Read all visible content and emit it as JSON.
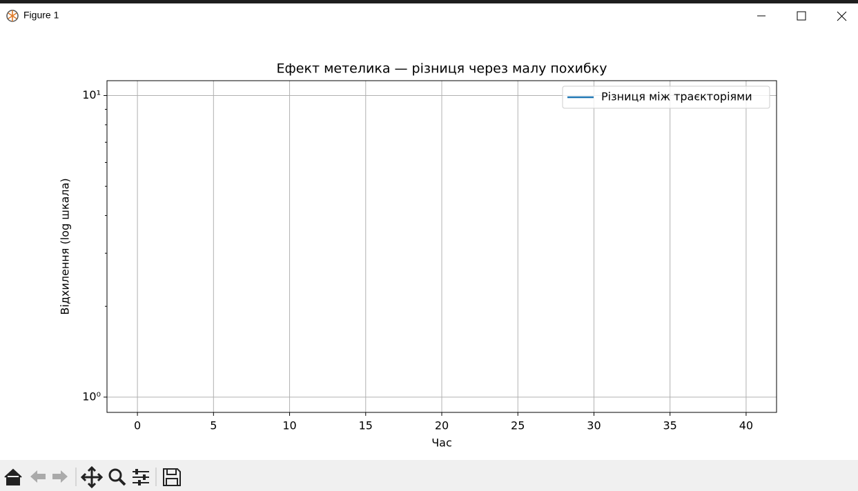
{
  "window": {
    "title": "Figure 1"
  },
  "chart_data": {
    "type": "line",
    "title": "Ефект метелика — різниця через малу похибку",
    "xlabel": "Час",
    "ylabel": "Відхилення (log шкала)",
    "x": [],
    "series": [
      {
        "name": "Різниця між траєкторіями",
        "color": "#1f77b4",
        "values": []
      }
    ],
    "xlim": [
      -2,
      42
    ],
    "xticks": [
      0,
      5,
      10,
      15,
      20,
      25,
      30,
      35,
      40
    ],
    "ylim": [
      0.89,
      11.2
    ],
    "yticks": [
      {
        "value": 1,
        "label": "10⁰"
      },
      {
        "value": 10,
        "label": "10¹"
      }
    ],
    "yminorticks": [
      2,
      3,
      4,
      5,
      6,
      7,
      8,
      9
    ],
    "ylog": true,
    "grid": true,
    "legend": "upper right"
  }
}
